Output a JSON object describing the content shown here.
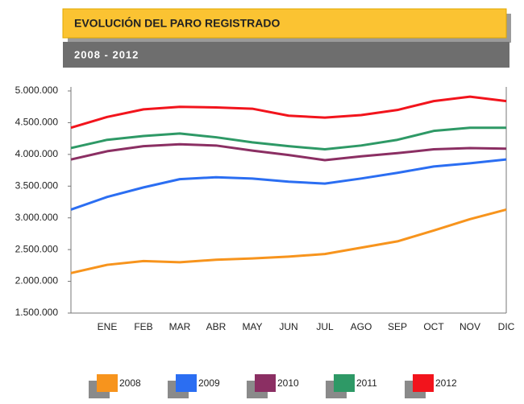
{
  "chart_data": {
    "type": "line",
    "title": "EVOLUCIÓN DEL PARO REGISTRADO",
    "subtitle": "2008 - 2012",
    "categories": [
      null,
      "ENE",
      "FEB",
      "MAR",
      "ABR",
      "MAY",
      "JUN",
      "JUL",
      "AGO",
      "SEP",
      "OCT",
      "NOV",
      "DIC"
    ],
    "series": [
      {
        "name": "2008",
        "color": "#f7941d",
        "values": [
          2130000,
          2260000,
          2320000,
          2300000,
          2340000,
          2360000,
          2390000,
          2430000,
          2530000,
          2630000,
          2800000,
          2980000,
          3130000
        ]
      },
      {
        "name": "2009",
        "color": "#2b6ef2",
        "values": [
          3130000,
          3330000,
          3480000,
          3610000,
          3640000,
          3620000,
          3570000,
          3540000,
          3620000,
          3710000,
          3810000,
          3860000,
          3920000
        ]
      },
      {
        "name": "2010",
        "color": "#8b2f63",
        "values": [
          3920000,
          4050000,
          4130000,
          4160000,
          4140000,
          4060000,
          3990000,
          3910000,
          3970000,
          4020000,
          4080000,
          4100000,
          4090000
        ]
      },
      {
        "name": "2011",
        "color": "#2e9966",
        "values": [
          4100000,
          4230000,
          4290000,
          4330000,
          4270000,
          4190000,
          4130000,
          4080000,
          4140000,
          4230000,
          4370000,
          4420000,
          4420000
        ]
      },
      {
        "name": "2012",
        "color": "#f2141c",
        "values": [
          4420000,
          4590000,
          4710000,
          4750000,
          4740000,
          4720000,
          4610000,
          4580000,
          4620000,
          4700000,
          4840000,
          4910000,
          4840000
        ]
      }
    ],
    "ylim": [
      1500000,
      5000000
    ],
    "yticks": [
      {
        "value": 1500000,
        "label": "1.500.000"
      },
      {
        "value": 2000000,
        "label": "2.000.000"
      },
      {
        "value": 2500000,
        "label": "2.500.000"
      },
      {
        "value": 3000000,
        "label": "3.000.000"
      },
      {
        "value": 3500000,
        "label": "3.500.000"
      },
      {
        "value": 4000000,
        "label": "4.000.000"
      },
      {
        "value": 4500000,
        "label": "4.500.000"
      },
      {
        "value": 5000000,
        "label": "5.000.000"
      }
    ],
    "legend": "bottom"
  }
}
